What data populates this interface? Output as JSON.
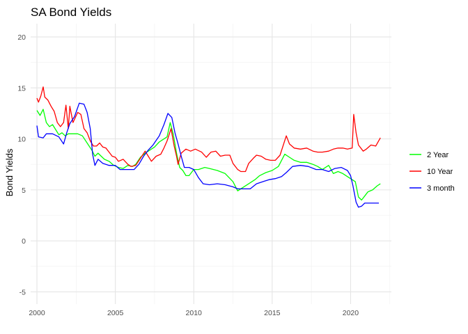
{
  "chart_data": {
    "type": "line",
    "title": "SA Bond Yields",
    "xlabel": "",
    "ylabel": "Bond Yields",
    "xlim": [
      1999.6,
      2022.6
    ],
    "ylim": [
      -6.2,
      21.3
    ],
    "xticks": [
      2000,
      2005,
      2010,
      2015,
      2020
    ],
    "yticks": [
      -5,
      0,
      5,
      10,
      15,
      20
    ],
    "grid": true,
    "legend_position": "right",
    "series": [
      {
        "name": "2 Year",
        "color": "#00ff00",
        "points": [
          [
            2000.0,
            12.8
          ],
          [
            2000.2,
            12.3
          ],
          [
            2000.4,
            12.9
          ],
          [
            2000.6,
            11.6
          ],
          [
            2000.8,
            11.2
          ],
          [
            2001.0,
            11.4
          ],
          [
            2001.2,
            10.9
          ],
          [
            2001.4,
            10.4
          ],
          [
            2001.6,
            10.6
          ],
          [
            2001.8,
            10.3
          ],
          [
            2002.0,
            10.5
          ],
          [
            2002.3,
            10.5
          ],
          [
            2002.6,
            10.5
          ],
          [
            2002.9,
            10.3
          ],
          [
            2003.2,
            9.6
          ],
          [
            2003.5,
            8.9
          ],
          [
            2003.7,
            8.3
          ],
          [
            2003.9,
            8.6
          ],
          [
            2004.1,
            8.3
          ],
          [
            2004.3,
            8.0
          ],
          [
            2004.6,
            7.8
          ],
          [
            2004.9,
            7.4
          ],
          [
            2005.2,
            7.2
          ],
          [
            2005.5,
            7.1
          ],
          [
            2005.8,
            7.4
          ],
          [
            2006.1,
            7.3
          ],
          [
            2006.3,
            7.5
          ],
          [
            2006.6,
            8.2
          ],
          [
            2006.9,
            8.6
          ],
          [
            2007.2,
            8.9
          ],
          [
            2007.5,
            9.2
          ],
          [
            2007.8,
            9.7
          ],
          [
            2008.0,
            9.9
          ],
          [
            2008.3,
            10.2
          ],
          [
            2008.5,
            11.6
          ],
          [
            2008.7,
            10.4
          ],
          [
            2008.9,
            8.6
          ],
          [
            2009.1,
            7.2
          ],
          [
            2009.3,
            6.9
          ],
          [
            2009.5,
            6.4
          ],
          [
            2009.7,
            6.4
          ],
          [
            2010.0,
            7.0
          ],
          [
            2010.3,
            7.0
          ],
          [
            2010.7,
            7.2
          ],
          [
            2011.0,
            7.1
          ],
          [
            2011.5,
            6.9
          ],
          [
            2012.0,
            6.6
          ],
          [
            2012.5,
            5.8
          ],
          [
            2012.8,
            4.9
          ],
          [
            2013.1,
            5.2
          ],
          [
            2013.5,
            5.6
          ],
          [
            2013.9,
            6.0
          ],
          [
            2014.2,
            6.4
          ],
          [
            2014.6,
            6.7
          ],
          [
            2015.0,
            6.9
          ],
          [
            2015.4,
            7.3
          ],
          [
            2015.8,
            8.5
          ],
          [
            2016.1,
            8.2
          ],
          [
            2016.4,
            7.9
          ],
          [
            2016.8,
            7.7
          ],
          [
            2017.2,
            7.7
          ],
          [
            2017.6,
            7.5
          ],
          [
            2017.9,
            7.3
          ],
          [
            2018.2,
            7.0
          ],
          [
            2018.6,
            7.4
          ],
          [
            2018.9,
            6.6
          ],
          [
            2019.2,
            6.8
          ],
          [
            2019.5,
            6.6
          ],
          [
            2019.8,
            6.3
          ],
          [
            2020.1,
            6.0
          ],
          [
            2020.3,
            5.8
          ],
          [
            2020.5,
            4.3
          ],
          [
            2020.7,
            4.0
          ],
          [
            2020.9,
            4.4
          ],
          [
            2021.1,
            4.8
          ],
          [
            2021.4,
            5.0
          ],
          [
            2021.7,
            5.4
          ],
          [
            2021.9,
            5.6
          ]
        ]
      },
      {
        "name": "10 Year",
        "color": "#ff0000",
        "points": [
          [
            2000.0,
            14.0
          ],
          [
            2000.1,
            13.6
          ],
          [
            2000.25,
            14.2
          ],
          [
            2000.4,
            15.1
          ],
          [
            2000.5,
            14.1
          ],
          [
            2000.7,
            13.8
          ],
          [
            2000.9,
            13.2
          ],
          [
            2001.1,
            12.7
          ],
          [
            2001.3,
            11.6
          ],
          [
            2001.5,
            11.2
          ],
          [
            2001.7,
            11.6
          ],
          [
            2001.85,
            13.3
          ],
          [
            2002.0,
            11.0
          ],
          [
            2002.1,
            13.2
          ],
          [
            2002.3,
            11.6
          ],
          [
            2002.6,
            12.6
          ],
          [
            2002.8,
            12.4
          ],
          [
            2003.0,
            11.0
          ],
          [
            2003.2,
            10.6
          ],
          [
            2003.4,
            9.8
          ],
          [
            2003.6,
            9.3
          ],
          [
            2003.8,
            9.3
          ],
          [
            2004.0,
            9.6
          ],
          [
            2004.2,
            9.2
          ],
          [
            2004.4,
            9.1
          ],
          [
            2004.6,
            8.7
          ],
          [
            2004.8,
            8.3
          ],
          [
            2005.0,
            8.2
          ],
          [
            2005.2,
            7.8
          ],
          [
            2005.5,
            8.0
          ],
          [
            2005.8,
            7.5
          ],
          [
            2006.0,
            7.3
          ],
          [
            2006.3,
            7.4
          ],
          [
            2006.6,
            8.1
          ],
          [
            2006.9,
            8.8
          ],
          [
            2007.1,
            8.3
          ],
          [
            2007.3,
            7.8
          ],
          [
            2007.6,
            8.3
          ],
          [
            2007.9,
            8.5
          ],
          [
            2008.1,
            9.1
          ],
          [
            2008.3,
            9.8
          ],
          [
            2008.55,
            11.0
          ],
          [
            2008.75,
            9.3
          ],
          [
            2008.9,
            8.3
          ],
          [
            2009.0,
            7.5
          ],
          [
            2009.2,
            8.6
          ],
          [
            2009.5,
            9.0
          ],
          [
            2009.8,
            8.8
          ],
          [
            2010.1,
            9.0
          ],
          [
            2010.5,
            8.7
          ],
          [
            2010.8,
            8.2
          ],
          [
            2011.1,
            8.7
          ],
          [
            2011.4,
            8.8
          ],
          [
            2011.7,
            8.3
          ],
          [
            2012.0,
            8.4
          ],
          [
            2012.3,
            8.4
          ],
          [
            2012.5,
            7.6
          ],
          [
            2012.8,
            7.0
          ],
          [
            2013.0,
            6.8
          ],
          [
            2013.3,
            6.8
          ],
          [
            2013.5,
            7.6
          ],
          [
            2013.8,
            8.1
          ],
          [
            2014.0,
            8.4
          ],
          [
            2014.3,
            8.3
          ],
          [
            2014.6,
            8.0
          ],
          [
            2014.9,
            7.9
          ],
          [
            2015.2,
            7.9
          ],
          [
            2015.5,
            8.4
          ],
          [
            2015.9,
            10.3
          ],
          [
            2016.1,
            9.5
          ],
          [
            2016.4,
            9.1
          ],
          [
            2016.8,
            9.0
          ],
          [
            2017.2,
            9.1
          ],
          [
            2017.6,
            8.8
          ],
          [
            2017.9,
            8.7
          ],
          [
            2018.2,
            8.7
          ],
          [
            2018.6,
            8.8
          ],
          [
            2018.9,
            9.0
          ],
          [
            2019.2,
            9.1
          ],
          [
            2019.5,
            9.1
          ],
          [
            2019.8,
            9.0
          ],
          [
            2020.1,
            9.1
          ],
          [
            2020.2,
            12.4
          ],
          [
            2020.35,
            10.6
          ],
          [
            2020.5,
            9.4
          ],
          [
            2020.8,
            8.8
          ],
          [
            2021.0,
            9.0
          ],
          [
            2021.3,
            9.4
          ],
          [
            2021.6,
            9.3
          ],
          [
            2021.9,
            10.1
          ]
        ]
      },
      {
        "name": "3 month",
        "color": "#0000ff",
        "points": [
          [
            2000.0,
            11.3
          ],
          [
            2000.1,
            10.2
          ],
          [
            2000.4,
            10.1
          ],
          [
            2000.6,
            10.5
          ],
          [
            2001.0,
            10.5
          ],
          [
            2001.4,
            10.2
          ],
          [
            2001.7,
            9.5
          ],
          [
            2001.9,
            10.6
          ],
          [
            2002.1,
            11.5
          ],
          [
            2002.4,
            12.2
          ],
          [
            2002.7,
            13.5
          ],
          [
            2003.0,
            13.4
          ],
          [
            2003.2,
            12.6
          ],
          [
            2003.4,
            11.0
          ],
          [
            2003.55,
            8.5
          ],
          [
            2003.7,
            7.4
          ],
          [
            2003.9,
            8.0
          ],
          [
            2004.2,
            7.6
          ],
          [
            2004.6,
            7.4
          ],
          [
            2005.0,
            7.4
          ],
          [
            2005.3,
            7.0
          ],
          [
            2005.8,
            7.0
          ],
          [
            2006.2,
            7.0
          ],
          [
            2006.5,
            7.5
          ],
          [
            2006.8,
            8.3
          ],
          [
            2007.1,
            8.9
          ],
          [
            2007.4,
            9.4
          ],
          [
            2007.8,
            10.3
          ],
          [
            2008.1,
            11.4
          ],
          [
            2008.35,
            12.5
          ],
          [
            2008.6,
            12.1
          ],
          [
            2008.8,
            10.6
          ],
          [
            2009.0,
            9.5
          ],
          [
            2009.2,
            8.3
          ],
          [
            2009.4,
            7.2
          ],
          [
            2009.7,
            7.2
          ],
          [
            2010.0,
            7.0
          ],
          [
            2010.3,
            6.2
          ],
          [
            2010.6,
            5.6
          ],
          [
            2011.0,
            5.5
          ],
          [
            2011.5,
            5.6
          ],
          [
            2012.0,
            5.5
          ],
          [
            2012.5,
            5.3
          ],
          [
            2012.8,
            5.1
          ],
          [
            2013.2,
            5.1
          ],
          [
            2013.6,
            5.1
          ],
          [
            2014.0,
            5.6
          ],
          [
            2014.4,
            5.8
          ],
          [
            2014.8,
            6.0
          ],
          [
            2015.2,
            6.1
          ],
          [
            2015.6,
            6.3
          ],
          [
            2015.9,
            6.7
          ],
          [
            2016.3,
            7.3
          ],
          [
            2016.8,
            7.4
          ],
          [
            2017.3,
            7.3
          ],
          [
            2017.8,
            7.0
          ],
          [
            2018.2,
            7.0
          ],
          [
            2018.6,
            6.8
          ],
          [
            2019.0,
            7.1
          ],
          [
            2019.4,
            7.2
          ],
          [
            2019.8,
            6.9
          ],
          [
            2020.0,
            6.4
          ],
          [
            2020.15,
            5.4
          ],
          [
            2020.35,
            3.8
          ],
          [
            2020.5,
            3.3
          ],
          [
            2020.7,
            3.4
          ],
          [
            2020.9,
            3.7
          ],
          [
            2021.4,
            3.7
          ],
          [
            2021.8,
            3.7
          ]
        ]
      }
    ]
  }
}
